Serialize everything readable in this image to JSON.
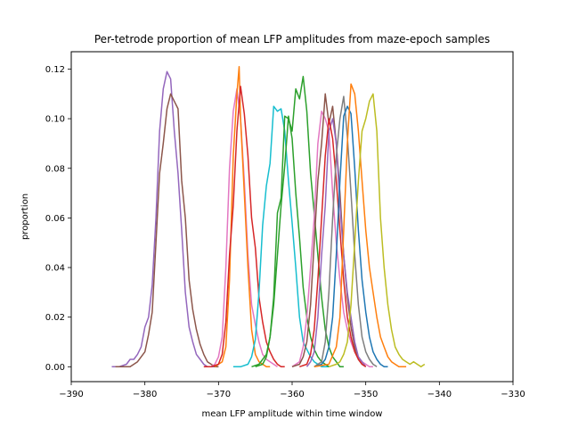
{
  "chart_data": {
    "type": "line",
    "title": "Per-tetrode proportion of mean LFP amplitudes from maze-epoch samples",
    "xlabel": "mean LFP amplitude within time window",
    "ylabel": "proportion",
    "xlim": [
      -390,
      -330
    ],
    "ylim": [
      -0.006,
      0.127
    ],
    "xticks": [
      -390,
      -380,
      -370,
      -360,
      -350,
      -340,
      -330
    ],
    "xtick_labels": [
      "−390",
      "−380",
      "−370",
      "−360",
      "−350",
      "−340",
      "−330"
    ],
    "yticks": [
      0.0,
      0.02,
      0.04,
      0.06,
      0.08,
      0.1,
      0.12
    ],
    "ytick_labels": [
      "0.00",
      "0.02",
      "0.04",
      "0.06",
      "0.08",
      "0.10",
      "0.12"
    ],
    "grid": false,
    "legend": "none",
    "series": [
      {
        "color": "#9467bd",
        "x": [
          -384.5,
          -383.5,
          -382.5,
          -382,
          -381.5,
          -381,
          -380.5,
          -380,
          -379.5,
          -379,
          -378.5,
          -378,
          -377.5,
          -377,
          -376.5,
          -376,
          -375.5,
          -375,
          -374.5,
          -374,
          -373.5,
          -373,
          -372.5,
          -372,
          -371.5,
          -371,
          -370.5,
          -370
        ],
        "y": [
          0,
          0,
          0.001,
          0.003,
          0.003,
          0.005,
          0.008,
          0.016,
          0.02,
          0.033,
          0.06,
          0.095,
          0.112,
          0.119,
          0.116,
          0.095,
          0.078,
          0.055,
          0.03,
          0.016,
          0.01,
          0.005,
          0.003,
          0.001,
          0,
          0,
          0,
          0
        ]
      },
      {
        "color": "#8c564b",
        "x": [
          -384,
          -383,
          -382,
          -381,
          -380,
          -379.5,
          -379,
          -378.5,
          -378,
          -377.5,
          -377,
          -376.5,
          -376,
          -375.5,
          -375,
          -374.5,
          -374,
          -373.5,
          -373,
          -372.5,
          -372,
          -371.5,
          -371,
          -370.5,
          -370
        ],
        "y": [
          0,
          0,
          0,
          0.002,
          0.006,
          0.013,
          0.022,
          0.05,
          0.078,
          0.09,
          0.104,
          0.11,
          0.107,
          0.104,
          0.075,
          0.06,
          0.035,
          0.023,
          0.015,
          0.009,
          0.005,
          0.002,
          0.001,
          0,
          0
        ]
      },
      {
        "color": "#e377c2",
        "x": [
          -371,
          -370.5,
          -370,
          -369.5,
          -369,
          -368.5,
          -368,
          -367.5,
          -367,
          -366.5,
          -366,
          -365.5,
          -365,
          -364.5,
          -364,
          -363.5,
          -363,
          -362.5,
          -362
        ],
        "y": [
          0,
          0.001,
          0.004,
          0.012,
          0.04,
          0.08,
          0.103,
          0.112,
          0.1,
          0.075,
          0.045,
          0.025,
          0.017,
          0.01,
          0.005,
          0.003,
          0.002,
          0.001,
          0
        ]
      },
      {
        "color": "#ff7f0e",
        "x": [
          -370.5,
          -370,
          -369.5,
          -369,
          -368.5,
          -368,
          -367.5,
          -367.2,
          -367,
          -366.5,
          -366,
          -365.5,
          -365,
          -364.5,
          -364,
          -363.5,
          -363
        ],
        "y": [
          0,
          0.001,
          0.002,
          0.008,
          0.035,
          0.085,
          0.11,
          0.121,
          0.1,
          0.07,
          0.04,
          0.015,
          0.005,
          0.002,
          0.001,
          0,
          0
        ]
      },
      {
        "color": "#d62728",
        "x": [
          -372,
          -371,
          -370,
          -369.5,
          -369,
          -368.5,
          -368,
          -367.5,
          -367,
          -366.5,
          -366,
          -365.5,
          -365,
          -364.5,
          -364,
          -363.5,
          -363,
          -362.5,
          -362,
          -361.5,
          -361
        ],
        "y": [
          0,
          0,
          0.001,
          0.005,
          0.018,
          0.045,
          0.065,
          0.095,
          0.113,
          0.102,
          0.085,
          0.06,
          0.048,
          0.028,
          0.018,
          0.01,
          0.006,
          0.003,
          0.001,
          0,
          0
        ]
      },
      {
        "color": "#17becf",
        "x": [
          -368,
          -367,
          -366,
          -365.5,
          -365,
          -364.5,
          -364,
          -363.5,
          -363,
          -362.5,
          -362,
          -361.5,
          -361,
          -360.5,
          -360,
          -359.5,
          -359,
          -358.5,
          -358,
          -357.5,
          -357,
          -356.5,
          -356,
          -355.5,
          -355
        ],
        "y": [
          0,
          0,
          0.001,
          0.004,
          0.011,
          0.03,
          0.057,
          0.073,
          0.082,
          0.105,
          0.103,
          0.104,
          0.095,
          0.075,
          0.058,
          0.04,
          0.02,
          0.01,
          0.007,
          0.004,
          0.002,
          0.001,
          0,
          0,
          0
        ]
      },
      {
        "color": "#2ca02c",
        "x": [
          -365,
          -364,
          -363.5,
          -363,
          -362.5,
          -362,
          -361.5,
          -361,
          -360.5,
          -360,
          -359.5,
          -359,
          -358.5,
          -358,
          -357.5,
          -357,
          -356.5,
          -356,
          -355.5,
          -355,
          -354.5,
          -354,
          -353.5,
          -353
        ],
        "y": [
          0,
          0.001,
          0.004,
          0.012,
          0.028,
          0.062,
          0.068,
          0.101,
          0.1,
          0.095,
          0.112,
          0.108,
          0.117,
          0.103,
          0.078,
          0.062,
          0.045,
          0.028,
          0.015,
          0.008,
          0.004,
          0.002,
          0,
          0
        ]
      },
      {
        "color": "#2ca02c",
        "x": [
          -365.5,
          -364.5,
          -363.5,
          -363,
          -362.5,
          -362,
          -361.5,
          -361,
          -360.5,
          -360,
          -359.5,
          -359,
          -358.5,
          -358,
          -357.5,
          -357,
          -356.5,
          -356,
          -355.5,
          -355
        ],
        "y": [
          0,
          0.001,
          0.005,
          0.012,
          0.025,
          0.045,
          0.065,
          0.081,
          0.101,
          0.092,
          0.07,
          0.052,
          0.032,
          0.02,
          0.012,
          0.007,
          0.004,
          0.002,
          0.001,
          0
        ]
      },
      {
        "color": "#e377c2",
        "x": [
          -360,
          -359,
          -358.5,
          -358,
          -357.5,
          -357,
          -356.5,
          -356,
          -355.5,
          -355,
          -354.5,
          -354,
          -353.5,
          -353,
          -352.5,
          -352,
          -351.5,
          -351,
          -350.5,
          -350,
          -349.5,
          -349
        ],
        "y": [
          0,
          0.002,
          0.008,
          0.02,
          0.04,
          0.06,
          0.09,
          0.103,
          0.1,
          0.095,
          0.07,
          0.05,
          0.035,
          0.022,
          0.015,
          0.01,
          0.006,
          0.004,
          0.002,
          0.001,
          0,
          0
        ]
      },
      {
        "color": "#8c564b",
        "x": [
          -360,
          -359,
          -358.5,
          -358,
          -357.5,
          -357,
          -356.5,
          -356,
          -355.5,
          -355,
          -354.5,
          -354,
          -353.5,
          -353,
          -352.5,
          -352,
          -351.5,
          -351,
          -350.5,
          -350
        ],
        "y": [
          0,
          0.001,
          0.004,
          0.01,
          0.025,
          0.05,
          0.075,
          0.09,
          0.11,
          0.098,
          0.105,
          0.09,
          0.07,
          0.045,
          0.028,
          0.016,
          0.008,
          0.003,
          0.001,
          0
        ]
      },
      {
        "color": "#9467bd",
        "x": [
          -358,
          -357.5,
          -357,
          -356.5,
          -356,
          -355.5,
          -355,
          -354.5,
          -354,
          -353.5,
          -353,
          -352.5,
          -352,
          -351.5,
          -351,
          -350.5,
          -350
        ],
        "y": [
          0,
          0.002,
          0.006,
          0.02,
          0.045,
          0.065,
          0.095,
          0.1,
          0.09,
          0.065,
          0.045,
          0.03,
          0.02,
          0.01,
          0.004,
          0.002,
          0
        ]
      },
      {
        "color": "#d62728",
        "x": [
          -359,
          -358,
          -357.5,
          -357,
          -356.5,
          -356,
          -355.5,
          -355,
          -354.5,
          -354,
          -353.5,
          -353,
          -352.5,
          -352,
          -351.5,
          -351,
          -350.5,
          -350
        ],
        "y": [
          0,
          0.001,
          0.005,
          0.015,
          0.035,
          0.06,
          0.085,
          0.1,
          0.092,
          0.075,
          0.055,
          0.035,
          0.02,
          0.012,
          0.006,
          0.003,
          0.001,
          0
        ]
      },
      {
        "color": "#7f7f7f",
        "x": [
          -357,
          -356,
          -355.5,
          -355,
          -354.5,
          -354,
          -353.5,
          -353,
          -352.5,
          -352,
          -351.5,
          -351,
          -350.5,
          -350,
          -349.5,
          -349,
          -348.5
        ],
        "y": [
          0,
          0.002,
          0.01,
          0.03,
          0.06,
          0.085,
          0.1,
          0.109,
          0.093,
          0.07,
          0.045,
          0.025,
          0.012,
          0.006,
          0.003,
          0.001,
          0
        ]
      },
      {
        "color": "#1f77b4",
        "x": [
          -357,
          -356,
          -355.5,
          -355,
          -354.5,
          -354,
          -353.5,
          -353,
          -352.5,
          -352,
          -351.5,
          -351,
          -350.5,
          -350,
          -349.5,
          -349,
          -348.5,
          -348,
          -347.5,
          -347
        ],
        "y": [
          0,
          0.001,
          0.003,
          0.008,
          0.02,
          0.045,
          0.075,
          0.101,
          0.105,
          0.102,
          0.08,
          0.055,
          0.035,
          0.022,
          0.012,
          0.006,
          0.003,
          0.001,
          0,
          0
        ]
      },
      {
        "color": "#ff7f0e",
        "x": [
          -357,
          -355,
          -354,
          -353.5,
          -353,
          -352.5,
          -352,
          -351.5,
          -351,
          -350.5,
          -350,
          -349.5,
          -349,
          -348.5,
          -348,
          -347.5,
          -347,
          -346.5,
          -346,
          -345.5,
          -345,
          -344.5
        ],
        "y": [
          0,
          0.001,
          0.008,
          0.02,
          0.055,
          0.09,
          0.114,
          0.11,
          0.095,
          0.075,
          0.055,
          0.04,
          0.03,
          0.02,
          0.012,
          0.008,
          0.004,
          0.002,
          0.001,
          0,
          0,
          0
        ]
      },
      {
        "color": "#bcbd22",
        "x": [
          -355,
          -354,
          -353.5,
          -353,
          -352.5,
          -352,
          -351.5,
          -351,
          -350.5,
          -350,
          -349.5,
          -349,
          -348.5,
          -348,
          -347.5,
          -347,
          -346.5,
          -346,
          -345.5,
          -345,
          -344.5,
          -344,
          -343.5,
          -343,
          -342.5,
          -342
        ],
        "y": [
          0,
          0.001,
          0.002,
          0.005,
          0.01,
          0.025,
          0.05,
          0.075,
          0.095,
          0.1,
          0.107,
          0.11,
          0.095,
          0.06,
          0.04,
          0.025,
          0.015,
          0.008,
          0.005,
          0.003,
          0.002,
          0.001,
          0.002,
          0.001,
          0,
          0.001
        ]
      }
    ]
  }
}
